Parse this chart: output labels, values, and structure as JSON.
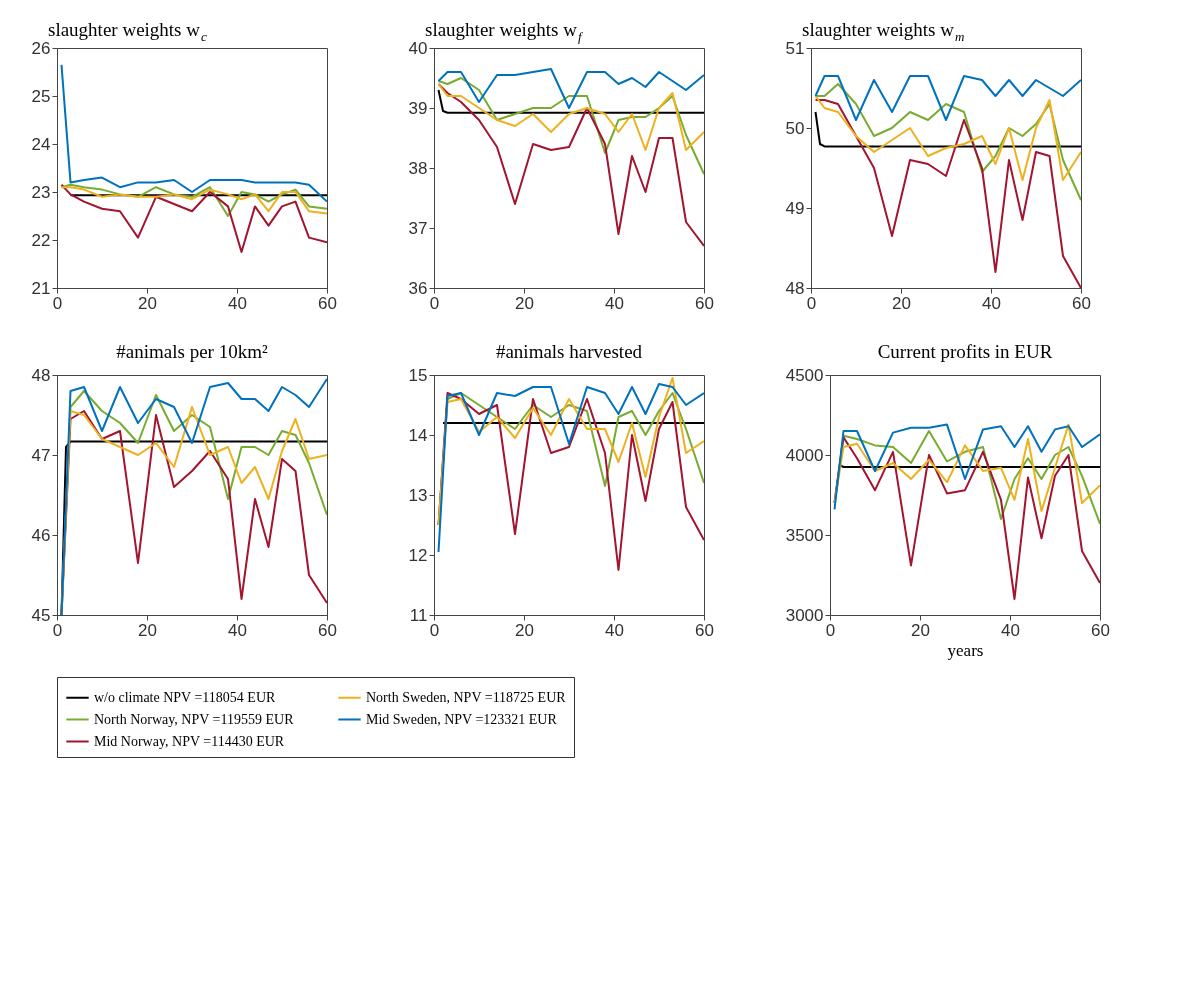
{
  "chart_data": [
    {
      "type": "line",
      "title": "slaughter weights w$_{c}$",
      "x": [
        1,
        3,
        6,
        10,
        14,
        18,
        22,
        26,
        30,
        34,
        38,
        41,
        44,
        47,
        50,
        53,
        56,
        60
      ],
      "xlim": [
        0,
        60
      ],
      "xticks": [
        0,
        20,
        40,
        60
      ],
      "ylim": [
        21,
        26
      ],
      "yticks": [
        21,
        22,
        23,
        24,
        25,
        26
      ],
      "grid": false,
      "legend": "bottom",
      "line_style": "solid",
      "series": [
        {
          "name": "w/o climate NPV =118054 EUR",
          "color": "#000000",
          "x": [
            3,
            60
          ],
          "values": [
            22.93,
            22.93
          ]
        },
        {
          "name": "North Norway, NPV =119559 EUR",
          "color": "#77ac30",
          "values": [
            23.1,
            23.15,
            23.1,
            23.05,
            22.95,
            22.9,
            23.1,
            22.95,
            22.9,
            23.1,
            22.5,
            23.0,
            22.95,
            22.8,
            22.95,
            23.05,
            22.7,
            22.65
          ]
        },
        {
          "name": "Mid Norway, NPV =114430 EUR",
          "color": "#a2142f",
          "values": [
            23.15,
            22.95,
            22.8,
            22.65,
            22.6,
            22.05,
            22.9,
            22.75,
            22.6,
            23.0,
            22.7,
            21.75,
            22.7,
            22.3,
            22.7,
            22.8,
            22.05,
            21.95
          ]
        },
        {
          "name": "North Sweden, NPV =118725 EUR",
          "color": "#edb120",
          "values": [
            23.1,
            23.1,
            23.05,
            22.9,
            22.95,
            22.9,
            22.9,
            22.95,
            22.85,
            23.05,
            22.95,
            22.85,
            22.95,
            22.6,
            23.0,
            23.0,
            22.6,
            22.55
          ]
        },
        {
          "name": "Mid Sweden, NPV =123321 EUR",
          "color": "#0072bd",
          "values": [
            25.65,
            23.2,
            23.25,
            23.3,
            23.1,
            23.2,
            23.2,
            23.25,
            23.0,
            23.25,
            23.25,
            23.25,
            23.2,
            23.2,
            23.2,
            23.2,
            23.15,
            22.8
          ]
        }
      ]
    },
    {
      "type": "line",
      "title": "slaughter weights w$_{f}$",
      "x": [
        1,
        3,
        6,
        10,
        14,
        18,
        22,
        26,
        30,
        34,
        38,
        41,
        44,
        47,
        50,
        53,
        56,
        60
      ],
      "xlim": [
        0,
        60
      ],
      "xticks": [
        0,
        20,
        40,
        60
      ],
      "ylim": [
        36,
        40
      ],
      "yticks": [
        36,
        37,
        38,
        39,
        40
      ],
      "grid": false,
      "legend": "bottom",
      "line_style": "solid",
      "series": [
        {
          "name": "w/o climate NPV =118054 EUR",
          "color": "#000000",
          "x": [
            1,
            2,
            3,
            60
          ],
          "values": [
            39.3,
            38.95,
            38.92,
            38.92
          ]
        },
        {
          "name": "North Norway, NPV =119559 EUR",
          "color": "#77ac30",
          "values": [
            39.45,
            39.4,
            39.5,
            39.3,
            38.8,
            38.9,
            39.0,
            39.0,
            39.2,
            39.2,
            38.25,
            38.8,
            38.85,
            38.85,
            39.0,
            39.2,
            38.55,
            37.9
          ]
        },
        {
          "name": "Mid Norway, NPV =114430 EUR",
          "color": "#a2142f",
          "values": [
            39.4,
            39.25,
            39.1,
            38.8,
            38.35,
            37.4,
            38.4,
            38.3,
            38.35,
            39.0,
            38.4,
            36.9,
            38.2,
            37.6,
            38.5,
            38.5,
            37.1,
            36.7
          ]
        },
        {
          "name": "North Sweden, NPV =118725 EUR",
          "color": "#edb120",
          "values": [
            39.4,
            39.2,
            39.2,
            39.0,
            38.8,
            38.7,
            38.9,
            38.6,
            38.9,
            39.0,
            38.9,
            38.6,
            38.9,
            38.3,
            39.0,
            39.25,
            38.3,
            38.6
          ]
        },
        {
          "name": "Mid Sweden, NPV =123321 EUR",
          "color": "#0072bd",
          "values": [
            39.45,
            39.6,
            39.6,
            39.1,
            39.55,
            39.55,
            39.6,
            39.65,
            39.0,
            39.6,
            39.6,
            39.4,
            39.5,
            39.35,
            39.6,
            39.45,
            39.3,
            39.55
          ]
        }
      ]
    },
    {
      "type": "line",
      "title": "slaughter weights w$_{m}$",
      "x": [
        1,
        3,
        6,
        10,
        14,
        18,
        22,
        26,
        30,
        34,
        38,
        41,
        44,
        47,
        50,
        53,
        56,
        60
      ],
      "xlim": [
        0,
        60
      ],
      "xticks": [
        0,
        20,
        40,
        60
      ],
      "ylim": [
        48,
        51
      ],
      "yticks": [
        48,
        49,
        50,
        51
      ],
      "grid": false,
      "legend": "bottom",
      "line_style": "solid",
      "series": [
        {
          "name": "w/o climate NPV =118054 EUR",
          "color": "#000000",
          "x": [
            1,
            2,
            3,
            60
          ],
          "values": [
            50.2,
            49.8,
            49.77,
            49.77
          ]
        },
        {
          "name": "North Norway, NPV =119559 EUR",
          "color": "#77ac30",
          "values": [
            50.4,
            50.4,
            50.55,
            50.3,
            49.9,
            50.0,
            50.2,
            50.1,
            50.3,
            50.2,
            49.45,
            49.65,
            50.0,
            49.9,
            50.05,
            50.3,
            49.6,
            49.1
          ]
        },
        {
          "name": "Mid Norway, NPV =114430 EUR",
          "color": "#a2142f",
          "values": [
            50.35,
            50.35,
            50.3,
            49.9,
            49.5,
            48.65,
            49.6,
            49.55,
            49.4,
            50.1,
            49.5,
            48.2,
            49.6,
            48.85,
            49.7,
            49.65,
            48.4,
            48.0
          ]
        },
        {
          "name": "North Sweden, NPV =118725 EUR",
          "color": "#edb120",
          "values": [
            50.4,
            50.25,
            50.2,
            49.9,
            49.7,
            49.85,
            50.0,
            49.65,
            49.75,
            49.8,
            49.9,
            49.55,
            50.0,
            49.35,
            50.0,
            50.35,
            49.35,
            49.7
          ]
        },
        {
          "name": "Mid Sweden, NPV =123321 EUR",
          "color": "#0072bd",
          "values": [
            50.4,
            50.65,
            50.65,
            50.1,
            50.6,
            50.2,
            50.65,
            50.65,
            50.1,
            50.65,
            50.6,
            50.4,
            50.6,
            50.4,
            50.6,
            50.5,
            50.4,
            50.6
          ]
        }
      ]
    },
    {
      "type": "line",
      "title": "#animals per 10km²",
      "x": [
        1,
        3,
        6,
        10,
        14,
        18,
        22,
        26,
        30,
        34,
        38,
        41,
        44,
        47,
        50,
        53,
        56,
        60
      ],
      "xlim": [
        0,
        60
      ],
      "xticks": [
        0,
        20,
        40,
        60
      ],
      "ylim": [
        45,
        48
      ],
      "yticks": [
        45,
        46,
        47,
        48
      ],
      "grid": false,
      "legend": "bottom",
      "line_style": "solid",
      "series": [
        {
          "name": "w/o climate NPV =118054 EUR",
          "color": "#000000",
          "x": [
            1,
            2,
            3,
            60
          ],
          "values": [
            45.0,
            47.1,
            47.17,
            47.17
          ]
        },
        {
          "name": "North Norway, NPV =119559 EUR",
          "color": "#77ac30",
          "values": [
            45.0,
            47.6,
            47.8,
            47.55,
            47.4,
            47.15,
            47.75,
            47.3,
            47.5,
            47.35,
            46.45,
            47.1,
            47.1,
            47.0,
            47.3,
            47.25,
            46.9,
            46.25
          ]
        },
        {
          "name": "Mid Norway, NPV =114430 EUR",
          "color": "#a2142f",
          "values": [
            45.0,
            47.45,
            47.55,
            47.2,
            47.3,
            45.65,
            47.5,
            46.6,
            46.8,
            47.05,
            46.7,
            45.2,
            46.45,
            45.85,
            46.95,
            46.8,
            45.5,
            45.15
          ]
        },
        {
          "name": "North Sweden, NPV =118725 EUR",
          "color": "#edb120",
          "values": [
            45.0,
            47.55,
            47.5,
            47.2,
            47.1,
            47.0,
            47.15,
            46.85,
            47.6,
            47.0,
            47.1,
            46.65,
            46.85,
            46.45,
            47.05,
            47.45,
            46.95,
            47.0
          ]
        },
        {
          "name": "Mid Sweden, NPV =123321 EUR",
          "color": "#0072bd",
          "values": [
            45.0,
            47.8,
            47.85,
            47.3,
            47.85,
            47.4,
            47.7,
            47.6,
            47.15,
            47.85,
            47.9,
            47.7,
            47.7,
            47.55,
            47.85,
            47.75,
            47.6,
            47.95
          ]
        }
      ]
    },
    {
      "type": "line",
      "title": "#animals harvested",
      "x": [
        1,
        3,
        6,
        10,
        14,
        18,
        22,
        26,
        30,
        34,
        38,
        41,
        44,
        47,
        50,
        53,
        56,
        60
      ],
      "xlim": [
        0,
        60
      ],
      "xticks": [
        0,
        20,
        40,
        60
      ],
      "ylim": [
        11,
        15
      ],
      "yticks": [
        11,
        12,
        13,
        14,
        15
      ],
      "grid": false,
      "legend": "bottom",
      "line_style": "solid",
      "series": [
        {
          "name": "w/o climate NPV =118054 EUR",
          "color": "#000000",
          "x": [
            2,
            60
          ],
          "values": [
            14.2,
            14.2
          ]
        },
        {
          "name": "North Norway, NPV =119559 EUR",
          "color": "#77ac30",
          "values": [
            12.5,
            14.6,
            14.7,
            14.5,
            14.3,
            14.1,
            14.5,
            14.3,
            14.5,
            14.4,
            13.15,
            14.3,
            14.4,
            14.0,
            14.4,
            14.7,
            14.1,
            13.2
          ]
        },
        {
          "name": "Mid Norway, NPV =114430 EUR",
          "color": "#a2142f",
          "values": [
            12.5,
            14.7,
            14.6,
            14.35,
            14.5,
            12.35,
            14.6,
            13.7,
            13.8,
            14.6,
            13.7,
            11.75,
            14.0,
            12.9,
            14.1,
            14.55,
            12.8,
            12.25
          ]
        },
        {
          "name": "North Sweden, NPV =118725 EUR",
          "color": "#edb120",
          "values": [
            12.5,
            14.55,
            14.6,
            14.05,
            14.3,
            13.95,
            14.45,
            14.0,
            14.6,
            14.1,
            14.1,
            13.55,
            14.2,
            13.3,
            14.3,
            14.95,
            13.7,
            13.9
          ]
        },
        {
          "name": "Mid Sweden, NPV =123321 EUR",
          "color": "#0072bd",
          "values": [
            12.05,
            14.65,
            14.7,
            14.0,
            14.7,
            14.65,
            14.8,
            14.8,
            13.85,
            14.8,
            14.7,
            14.35,
            14.8,
            14.35,
            14.85,
            14.8,
            14.5,
            14.7
          ]
        }
      ]
    },
    {
      "type": "line",
      "title": "Current profits in EUR",
      "xlabel": "years",
      "x": [
        1,
        3,
        6,
        10,
        14,
        18,
        22,
        26,
        30,
        34,
        38,
        41,
        44,
        47,
        50,
        53,
        56,
        60
      ],
      "xlim": [
        0,
        60
      ],
      "xticks": [
        0,
        20,
        40,
        60
      ],
      "ylim": [
        3000,
        4500
      ],
      "yticks": [
        3000,
        3500,
        4000,
        4500
      ],
      "grid": false,
      "legend": "bottom",
      "line_style": "solid",
      "series": [
        {
          "name": "w/o climate NPV =118054 EUR",
          "color": "#000000",
          "x": [
            2,
            3,
            60
          ],
          "values": [
            3940,
            3925,
            3925
          ]
        },
        {
          "name": "North Norway, NPV =119559 EUR",
          "color": "#77ac30",
          "values": [
            3700,
            4120,
            4100,
            4060,
            4050,
            3950,
            4150,
            3960,
            4020,
            4050,
            3600,
            3850,
            3980,
            3850,
            4000,
            4050,
            3870,
            3570
          ]
        },
        {
          "name": "Mid Norway, NPV =114430 EUR",
          "color": "#a2142f",
          "values": [
            3700,
            4110,
            3980,
            3780,
            4020,
            3310,
            4000,
            3760,
            3780,
            4020,
            3720,
            3100,
            3860,
            3480,
            3870,
            4000,
            3400,
            3200
          ]
        },
        {
          "name": "North Sweden, NPV =118725 EUR",
          "color": "#edb120",
          "values": [
            3700,
            4050,
            4070,
            3900,
            3950,
            3850,
            3970,
            3830,
            4060,
            3900,
            3920,
            3720,
            4100,
            3650,
            3920,
            4190,
            3700,
            3810
          ]
        },
        {
          "name": "Mid Sweden, NPV =123321 EUR",
          "color": "#0072bd",
          "values": [
            3660,
            4150,
            4150,
            3900,
            4140,
            4170,
            4170,
            4190,
            3850,
            4160,
            4180,
            4050,
            4180,
            4020,
            4160,
            4180,
            4050,
            4130
          ]
        }
      ]
    }
  ]
}
